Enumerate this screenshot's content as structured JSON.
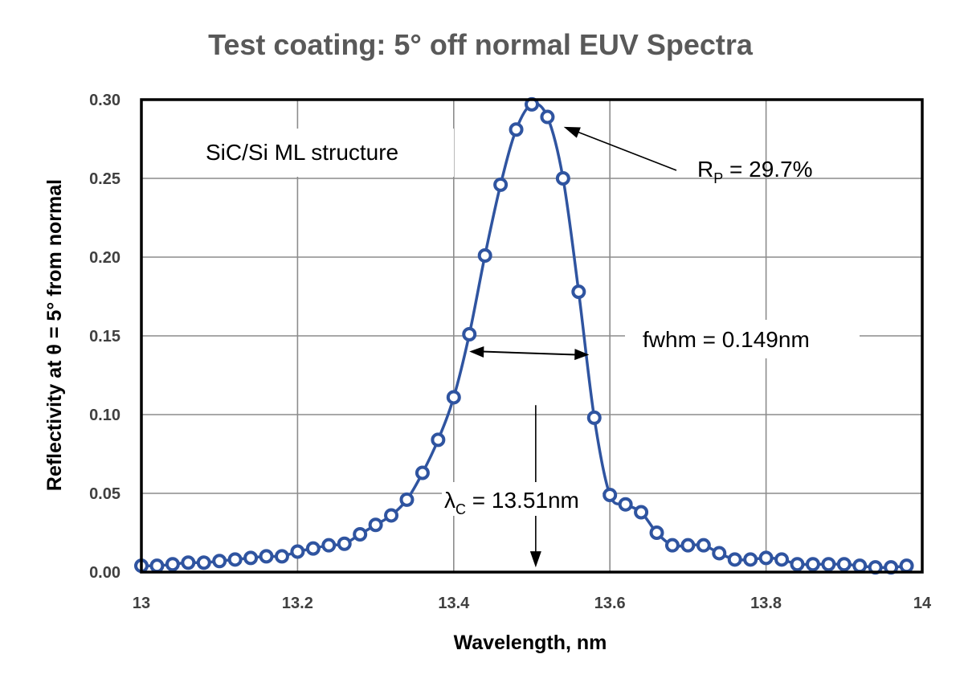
{
  "chart_data": {
    "type": "line",
    "title": "Test coating: 5° off normal EUV Spectra",
    "xlabel": "Wavelength, nm",
    "ylabel": "Reflectivity at θ = 5° from normal",
    "xlim": [
      13,
      14
    ],
    "ylim": [
      0,
      0.3
    ],
    "grid": true,
    "x_ticks": [
      13,
      13.2,
      13.4,
      13.6,
      13.8,
      14
    ],
    "x_tick_labels": [
      "13",
      "13.2",
      "13.4",
      "13.6",
      "13.8",
      "14"
    ],
    "y_ticks": [
      0,
      0.05,
      0.1,
      0.15,
      0.2,
      0.25,
      0.3
    ],
    "y_tick_labels": [
      "0.00",
      "0.05",
      "0.10",
      "0.15",
      "0.20",
      "0.25",
      "0.30"
    ],
    "series": [
      {
        "name": "SiC/Si ML structure",
        "color": "#2f54a0",
        "x": [
          13.0,
          13.02,
          13.04,
          13.06,
          13.08,
          13.1,
          13.12,
          13.14,
          13.16,
          13.18,
          13.2,
          13.22,
          13.24,
          13.26,
          13.28,
          13.3,
          13.32,
          13.34,
          13.36,
          13.38,
          13.4,
          13.42,
          13.44,
          13.46,
          13.48,
          13.5,
          13.52,
          13.54,
          13.56,
          13.58,
          13.6,
          13.62,
          13.64,
          13.66,
          13.68,
          13.7,
          13.72,
          13.74,
          13.76,
          13.78,
          13.8,
          13.82,
          13.84,
          13.86,
          13.88,
          13.9,
          13.92,
          13.94,
          13.96,
          13.98
        ],
        "y": [
          0.004,
          0.004,
          0.005,
          0.006,
          0.006,
          0.007,
          0.008,
          0.009,
          0.01,
          0.01,
          0.013,
          0.015,
          0.017,
          0.018,
          0.024,
          0.03,
          0.036,
          0.046,
          0.063,
          0.084,
          0.111,
          0.151,
          0.201,
          0.246,
          0.281,
          0.297,
          0.289,
          0.25,
          0.178,
          0.098,
          0.049,
          0.043,
          0.038,
          0.025,
          0.017,
          0.017,
          0.017,
          0.012,
          0.008,
          0.008,
          0.009,
          0.008,
          0.005,
          0.005,
          0.005,
          0.005,
          0.004,
          0.003,
          0.003,
          0.004
        ]
      }
    ],
    "annotations": {
      "structure_label": "SiC/Si ML structure",
      "peak": {
        "prefix": "R",
        "subscript": "P",
        "suffix": " = 29.7%",
        "x": 13.51,
        "y": 0.297
      },
      "fwhm": {
        "text": "fwhm  = 0.149nm",
        "x_start": 13.42,
        "x_end": 13.56,
        "y": 0.139
      },
      "center": {
        "prefix": "λ",
        "subscript": "C",
        "suffix": "  = 13.51nm",
        "x": 13.505,
        "y_start": 0.106,
        "y_end": 0.003
      }
    }
  }
}
